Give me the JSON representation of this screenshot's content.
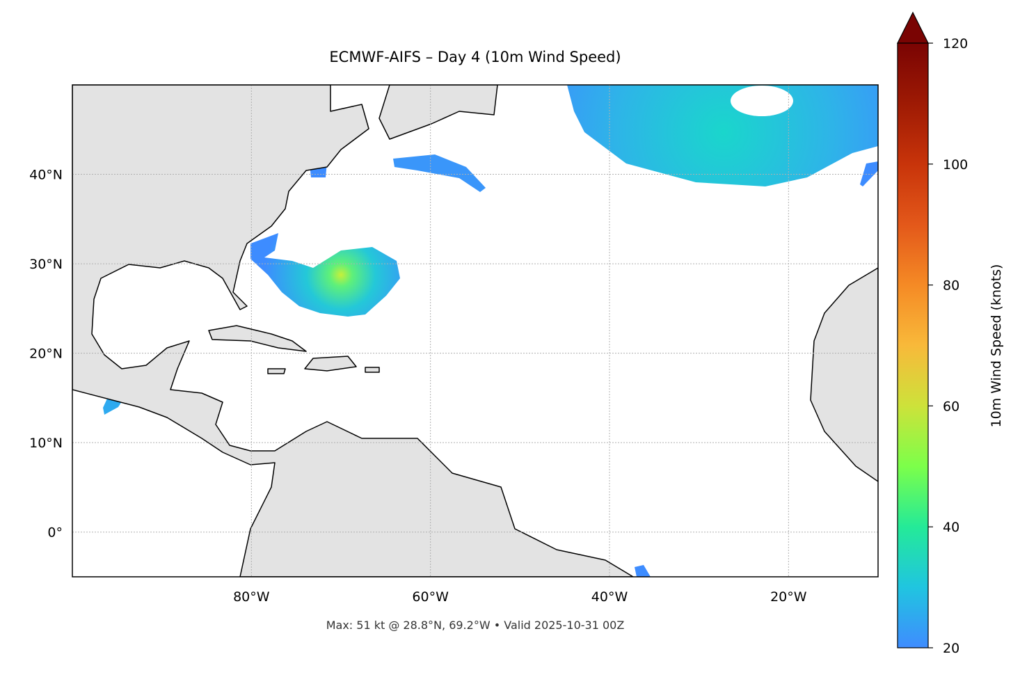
{
  "chart_data": {
    "type": "map",
    "title": "ECMWF-AIFS – Day 4 (10m Wind Speed)",
    "footnote": "Max: 51 kt @ 28.8°N, 69.2°W • Valid 2025-10-31 00Z",
    "xlim": [
      -100,
      -10
    ],
    "ylim": [
      -5,
      50
    ],
    "xticks": [
      {
        "value": -80,
        "label": "80°W"
      },
      {
        "value": -60,
        "label": "60°W"
      },
      {
        "value": -40,
        "label": "40°W"
      },
      {
        "value": -20,
        "label": "20°W"
      }
    ],
    "yticks": [
      {
        "value": 0,
        "label": "0°"
      },
      {
        "value": 10,
        "label": "10°N"
      },
      {
        "value": 20,
        "label": "20°N"
      },
      {
        "value": 30,
        "label": "30°N"
      },
      {
        "value": 40,
        "label": "40°N"
      }
    ],
    "grid": true,
    "colorbar": {
      "label": "10m Wind Speed (knots)",
      "lim": [
        20,
        120
      ],
      "ticks": [
        20,
        40,
        60,
        80,
        100,
        120
      ]
    }
  }
}
